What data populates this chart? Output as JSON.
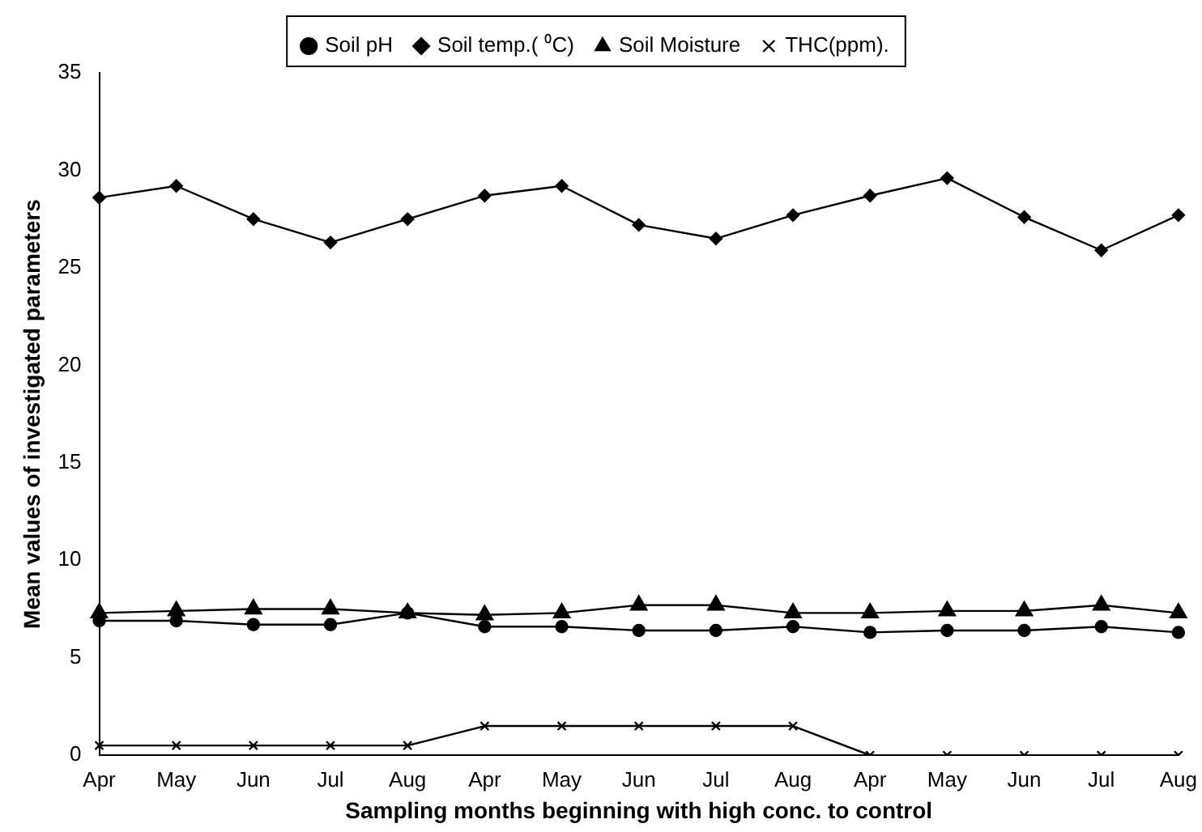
{
  "chart_data": {
    "type": "line",
    "xlabel": "Sampling months beginning with high conc. to control",
    "ylabel": "Mean values of investigated parameters",
    "categories": [
      "Apr",
      "May",
      "Jun",
      "Jul",
      "Aug",
      "Apr",
      "May",
      "Jun",
      "Jul",
      "Aug",
      "Apr",
      "May",
      "Jun",
      "Jul",
      "Aug"
    ],
    "series": [
      {
        "name": "Soil pH",
        "color": "#000000",
        "marker": "circle",
        "values": [
          6.9,
          6.9,
          6.7,
          6.7,
          7.3,
          6.6,
          6.6,
          6.4,
          6.4,
          6.6,
          6.3,
          6.4,
          6.4,
          6.6,
          6.3
        ]
      },
      {
        "name": "Soil temp.( ⁰C)",
        "color": "#000000",
        "marker": "diamond",
        "values": [
          28.6,
          29.2,
          27.5,
          26.3,
          27.5,
          28.7,
          29.2,
          27.2,
          26.5,
          27.7,
          28.7,
          29.6,
          27.6,
          25.9,
          27.7
        ]
      },
      {
        "name": "Soil Moisture",
        "color": "#000000",
        "marker": "triangle",
        "values": [
          7.3,
          7.4,
          7.5,
          7.5,
          7.3,
          7.2,
          7.3,
          7.7,
          7.7,
          7.3,
          7.3,
          7.4,
          7.4,
          7.7,
          7.3
        ]
      },
      {
        "name": "THC(ppm).",
        "color": "#000000",
        "marker": "cross",
        "values": [
          0.5,
          0.5,
          0.5,
          0.5,
          0.5,
          1.5,
          1.5,
          1.5,
          1.5,
          1.5,
          0,
          0,
          0,
          0,
          0
        ]
      }
    ],
    "ylim": [
      0,
      35
    ],
    "yticks": [
      0,
      5,
      10,
      15,
      20,
      25,
      30,
      35
    ],
    "grid": false,
    "legend": "top",
    "line_style": "solid"
  }
}
